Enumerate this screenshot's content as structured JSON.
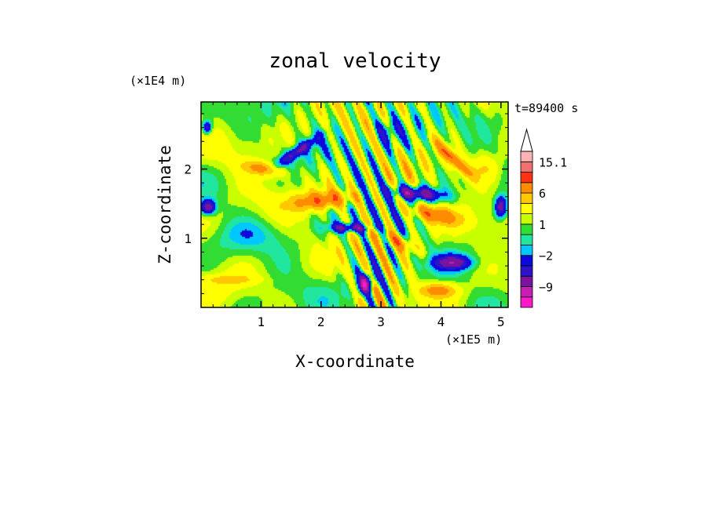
{
  "chart_data": {
    "type": "heatmap",
    "title": "zonal velocity",
    "xlabel": "X-coordinate",
    "ylabel": "Z-coordinate",
    "x_scale_label": "(×1E5 m)",
    "y_scale_label": "(×1E4 m)",
    "time_label": "t=89400 s",
    "xlim": [
      0,
      5.12
    ],
    "ylim": [
      0,
      2.97
    ],
    "x_ticks": [
      1,
      2,
      3,
      4,
      5
    ],
    "y_ticks": [
      1,
      2
    ],
    "colorbar": {
      "levels": [
        -15,
        -12,
        -9,
        -6,
        -4,
        -2,
        -1,
        0,
        1,
        2,
        4,
        6,
        9,
        12,
        15.1
      ],
      "colors": [
        "#ff19c8",
        "#c81eb4",
        "#7a14a0",
        "#2d14c8",
        "#0a0adc",
        "#00c8ff",
        "#20e6a0",
        "#32dc32",
        "#c8ff00",
        "#ffff00",
        "#ffc800",
        "#ff8c00",
        "#ff3214",
        "#f07070",
        "#ffb4b4"
      ],
      "tick_labels": [
        {
          "value": 15.1,
          "text": "15.1"
        },
        {
          "value": 6,
          "text": "6"
        },
        {
          "value": 1,
          "text": "1"
        },
        {
          "value": -2,
          "text": "−2"
        },
        {
          "value": -9,
          "text": "−9"
        }
      ],
      "extend_max": true
    },
    "field_features": [
      {
        "x": 2.05,
        "z": 1.55,
        "sx": 0.55,
        "sz": 0.13,
        "v": 7,
        "angle": 5
      },
      {
        "x": 1.05,
        "z": 2.0,
        "sx": 0.35,
        "sz": 0.1,
        "v": 6,
        "angle": -8
      },
      {
        "x": 3.85,
        "z": 1.35,
        "sx": 0.45,
        "sz": 0.12,
        "v": 7,
        "angle": -10
      },
      {
        "x": 4.2,
        "z": 2.15,
        "sx": 0.4,
        "sz": 0.08,
        "v": 8,
        "angle": -40
      },
      {
        "x": 1.6,
        "z": 2.25,
        "sx": 0.4,
        "sz": 0.08,
        "v": -7,
        "angle": 30
      },
      {
        "x": 3.6,
        "z": 1.65,
        "sx": 0.45,
        "sz": 0.1,
        "v": -9,
        "angle": -5
      },
      {
        "x": 2.5,
        "z": 1.15,
        "sx": 0.35,
        "sz": 0.07,
        "v": -8,
        "angle": 0
      },
      {
        "x": 4.2,
        "z": 0.65,
        "sx": 0.3,
        "sz": 0.1,
        "v": -8,
        "angle": 0
      },
      {
        "x": 0.12,
        "z": 1.45,
        "sx": 0.12,
        "sz": 0.1,
        "v": -9,
        "angle": 0
      },
      {
        "x": 5.0,
        "z": 1.45,
        "sx": 0.1,
        "sz": 0.15,
        "v": -9,
        "angle": 0
      },
      {
        "x": 0.1,
        "z": 2.6,
        "sx": 0.08,
        "sz": 0.1,
        "v": -7,
        "angle": 0
      },
      {
        "x": 2.75,
        "z": 0.35,
        "sx": 0.15,
        "sz": 0.12,
        "v": -10,
        "angle": 60
      },
      {
        "x": 3.3,
        "z": 0.95,
        "sx": 0.35,
        "sz": 0.1,
        "v": 5,
        "angle": -20
      },
      {
        "x": 3.95,
        "z": 0.25,
        "sx": 0.3,
        "sz": 0.1,
        "v": 6,
        "angle": 0
      },
      {
        "x": 0.45,
        "z": 0.4,
        "sx": 0.45,
        "sz": 0.07,
        "v": 3,
        "angle": 0
      },
      {
        "x": 3.1,
        "z": 2.55,
        "sx": 0.2,
        "sz": 0.2,
        "v": -4,
        "angle": 0
      },
      {
        "x": 0.8,
        "z": 1.05,
        "sx": 0.5,
        "sz": 0.2,
        "v": -1.5,
        "angle": 0
      },
      {
        "x": 4.7,
        "z": 2.0,
        "sx": 0.3,
        "sz": 0.2,
        "v": 3,
        "angle": 0
      }
    ]
  }
}
